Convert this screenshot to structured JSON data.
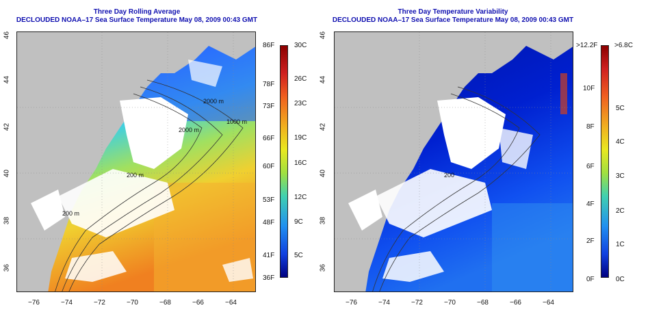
{
  "left_panel": {
    "title": "Three Day Rolling Average",
    "subtitle": "DECLOUDED NOAA–17 Sea Surface Temperature May 08, 2009 00:43 GMT",
    "colorbar_f": [
      "86F",
      "78F",
      "73F",
      "66F",
      "60F",
      "53F",
      "48F",
      "41F",
      "36F"
    ],
    "colorbar_c": [
      "30C",
      "26C",
      "23C",
      "19C",
      "16C",
      "12C",
      "9C",
      "5C"
    ],
    "contour_labels": [
      "2000 m",
      "2000 m",
      "1000 m",
      "200 m",
      "200 m"
    ]
  },
  "right_panel": {
    "title": "Three Day Temperature Variability",
    "subtitle": "DECLOUDED NOAA–17 Sea Surface Temperature May 08, 2009 00:43 GMT",
    "colorbar_f": [
      ">12.2F",
      "10F",
      "8F",
      "6F",
      "4F",
      "2F",
      "0F"
    ],
    "colorbar_c": [
      ">6.8C",
      "5C",
      "4C",
      "3C",
      "2C",
      "1C",
      "0C"
    ],
    "contour_labels": [
      "200"
    ]
  },
  "axes": {
    "x_ticks": [
      "−76",
      "−74",
      "−72",
      "−70",
      "−68",
      "−66",
      "−64"
    ],
    "y_ticks": [
      "46",
      "44",
      "42",
      "40",
      "38",
      "36"
    ]
  },
  "colors": {
    "title": "#1010b0",
    "land": "#c0c0c0",
    "cloud": "#ffffff"
  }
}
